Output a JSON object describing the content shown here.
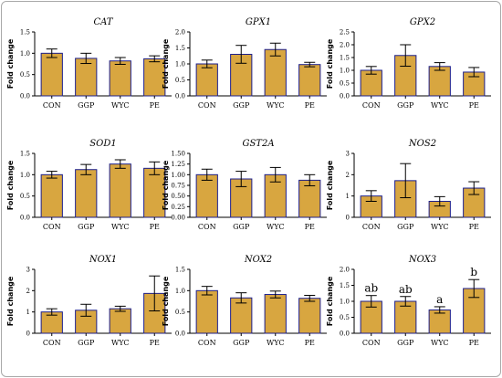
{
  "colors": {
    "bar_fill": "#d8a640",
    "bar_edge": "#1c1f8c",
    "axis": "#000000"
  },
  "chart_data": [
    {
      "type": "bar",
      "title": "CAT",
      "ylabel": "Fold change",
      "categories": [
        "CON",
        "GGP",
        "WYC",
        "PE"
      ],
      "values": [
        1.0,
        0.88,
        0.82,
        0.87
      ],
      "errors": [
        0.1,
        0.12,
        0.08,
        0.07
      ],
      "ylim": [
        0,
        1.5
      ],
      "yticks": [
        "0.0",
        "0.5",
        "1.0",
        "1.5"
      ],
      "annotations": []
    },
    {
      "type": "bar",
      "title": "GPX1",
      "ylabel": "Fold change",
      "categories": [
        "CON",
        "GGP",
        "WYC",
        "PE"
      ],
      "values": [
        1.0,
        1.3,
        1.45,
        0.98
      ],
      "errors": [
        0.12,
        0.28,
        0.2,
        0.07
      ],
      "ylim": [
        0,
        2.0
      ],
      "yticks": [
        "0.0",
        "0.5",
        "1.0",
        "1.5",
        "2.0"
      ],
      "annotations": []
    },
    {
      "type": "bar",
      "title": "GPX2",
      "ylabel": "Fold change",
      "categories": [
        "CON",
        "GGP",
        "WYC",
        "PE"
      ],
      "values": [
        1.0,
        1.58,
        1.15,
        0.93
      ],
      "errors": [
        0.15,
        0.42,
        0.15,
        0.18
      ],
      "ylim": [
        0,
        2.5
      ],
      "yticks": [
        "0.0",
        "0.5",
        "1.0",
        "1.5",
        "2.0",
        "2.5"
      ],
      "annotations": []
    },
    {
      "type": "bar",
      "title": "SOD1",
      "ylabel": "Fold change",
      "categories": [
        "CON",
        "GGP",
        "WYC",
        "PE"
      ],
      "values": [
        1.0,
        1.12,
        1.25,
        1.15
      ],
      "errors": [
        0.08,
        0.12,
        0.1,
        0.15
      ],
      "ylim": [
        0,
        1.5
      ],
      "yticks": [
        "0.0",
        "0.5",
        "1.0",
        "1.5"
      ],
      "annotations": []
    },
    {
      "type": "bar",
      "title": "GST2A",
      "ylabel": "Fold change",
      "categories": [
        "CON",
        "GGP",
        "WYC",
        "PE"
      ],
      "values": [
        1.0,
        0.9,
        1.0,
        0.87
      ],
      "errors": [
        0.13,
        0.18,
        0.17,
        0.13
      ],
      "ylim": [
        0,
        1.5
      ],
      "yticks": [
        "0.00",
        "0.25",
        "0.50",
        "0.75",
        "1.00",
        "1.25",
        "1.50"
      ],
      "annotations": []
    },
    {
      "type": "bar",
      "title": "NOS2",
      "ylabel": "Fold change",
      "categories": [
        "CON",
        "GGP",
        "WYC",
        "PE"
      ],
      "values": [
        1.0,
        1.72,
        0.75,
        1.37
      ],
      "errors": [
        0.25,
        0.8,
        0.22,
        0.3
      ],
      "ylim": [
        0,
        3
      ],
      "yticks": [
        "0",
        "1",
        "2",
        "3"
      ],
      "annotations": []
    },
    {
      "type": "bar",
      "title": "NOX1",
      "ylabel": "Fold change",
      "categories": [
        "CON",
        "GGP",
        "WYC",
        "PE"
      ],
      "values": [
        1.0,
        1.08,
        1.15,
        1.87
      ],
      "errors": [
        0.15,
        0.28,
        0.12,
        0.82
      ],
      "ylim": [
        0,
        3
      ],
      "yticks": [
        "0",
        "1",
        "2",
        "3"
      ],
      "annotations": []
    },
    {
      "type": "bar",
      "title": "NOX2",
      "ylabel": "Fold change",
      "categories": [
        "CON",
        "GGP",
        "WYC",
        "PE"
      ],
      "values": [
        1.0,
        0.83,
        0.91,
        0.82
      ],
      "errors": [
        0.1,
        0.12,
        0.08,
        0.07
      ],
      "ylim": [
        0,
        1.5
      ],
      "yticks": [
        "0.0",
        "0.5",
        "1.0",
        "1.5"
      ],
      "annotations": []
    },
    {
      "type": "bar",
      "title": "NOX3",
      "ylabel": "Fold change",
      "categories": [
        "CON",
        "GGP",
        "WYC",
        "PE"
      ],
      "values": [
        1.0,
        1.0,
        0.73,
        1.4
      ],
      "errors": [
        0.18,
        0.15,
        0.1,
        0.28
      ],
      "ylim": [
        0,
        2.0
      ],
      "yticks": [
        "0.0",
        "0.5",
        "1.0",
        "1.5",
        "2.0"
      ],
      "annotations": [
        "ab",
        "ab",
        "a",
        "b"
      ]
    }
  ]
}
